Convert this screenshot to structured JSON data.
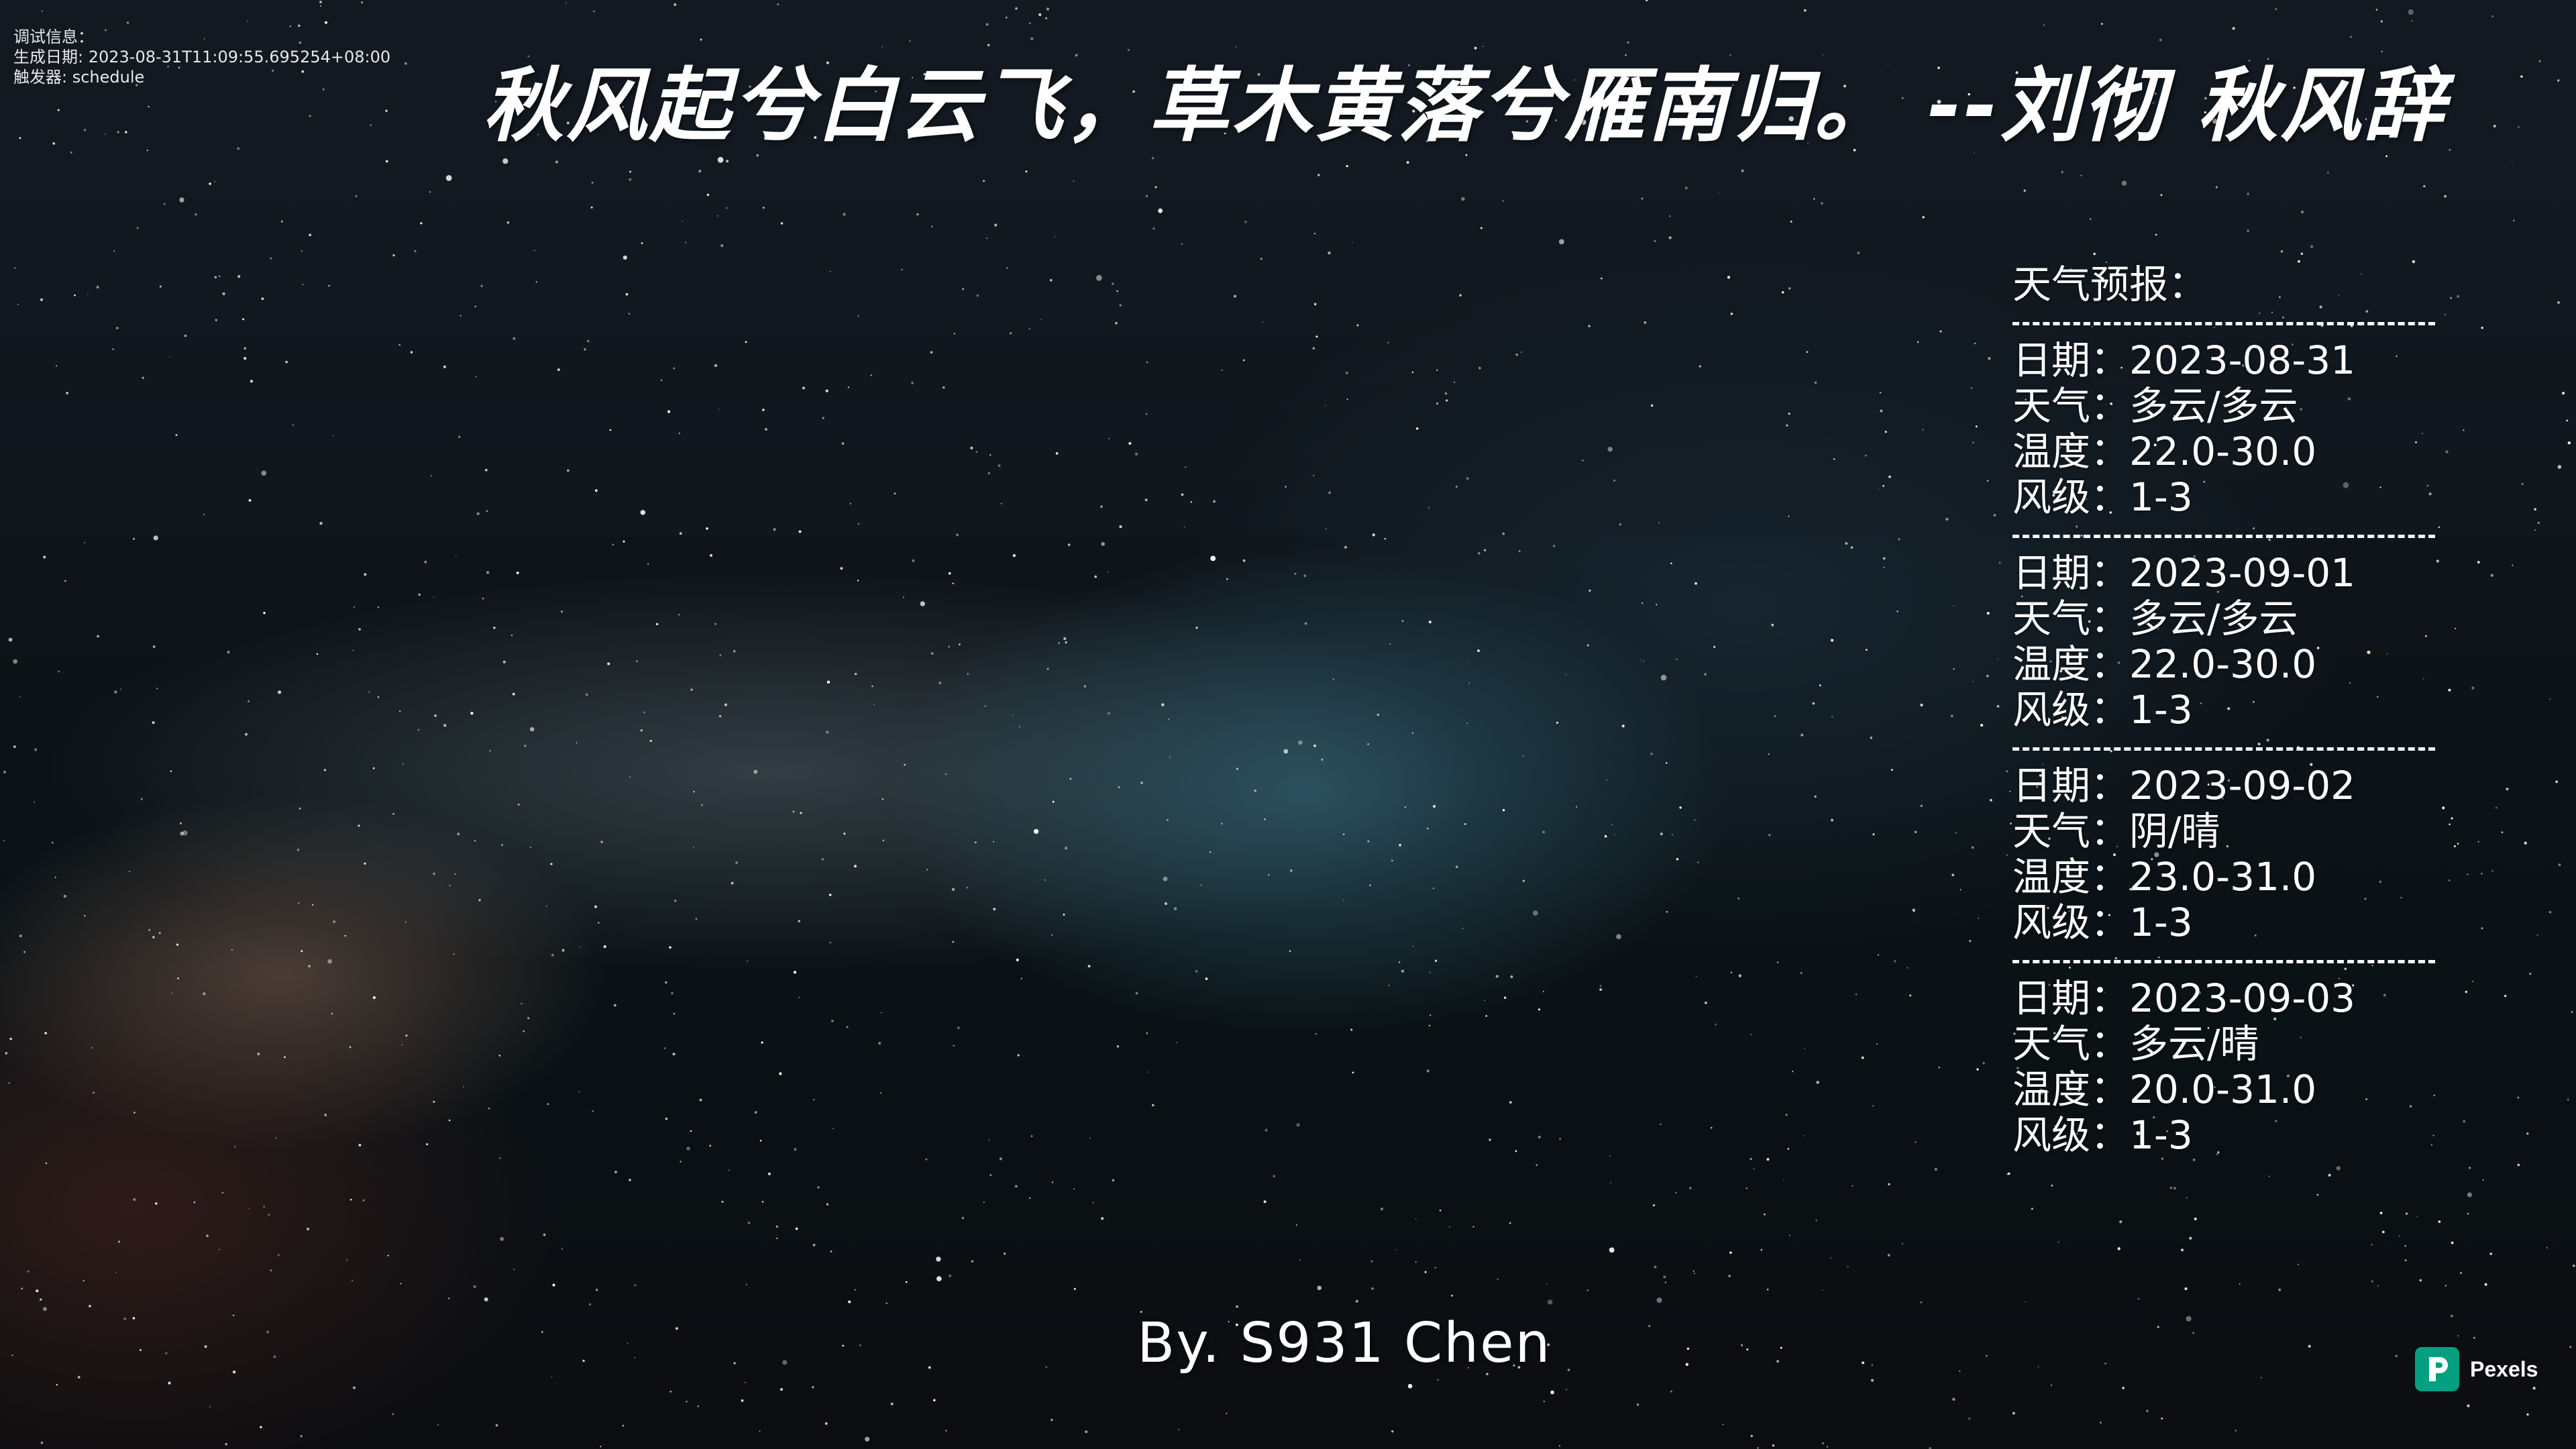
{
  "debug": {
    "label": "调试信息：",
    "generated": "生成日期: 2023-08-31T11:09:55.695254+08:00",
    "trigger": "触发器: schedule"
  },
  "quote": "秋风起兮白云飞，草木黄落兮雁南归。  --刘彻 秋风辞",
  "weather": {
    "title": "天气预报：",
    "divider": "------------------------------",
    "days": [
      {
        "date": "日期：2023-08-31",
        "weather": "天气：多云/多云",
        "temp": "温度：22.0-30.0",
        "wind": "风级：1-3"
      },
      {
        "date": "日期：2023-09-01",
        "weather": "天气：多云/多云",
        "temp": "温度：22.0-30.0",
        "wind": "风级：1-3"
      },
      {
        "date": "日期：2023-09-02",
        "weather": "天气：阴/晴",
        "temp": "温度：23.0-31.0",
        "wind": "风级：1-3"
      },
      {
        "date": "日期：2023-09-03",
        "weather": "天气：多云/晴",
        "temp": "温度：20.0-31.0",
        "wind": "风级：1-3"
      }
    ]
  },
  "byline": "By. S931 Chen",
  "watermark": {
    "text": "Pexels",
    "icon": "pexels-logo-icon",
    "color": "#05a081"
  }
}
